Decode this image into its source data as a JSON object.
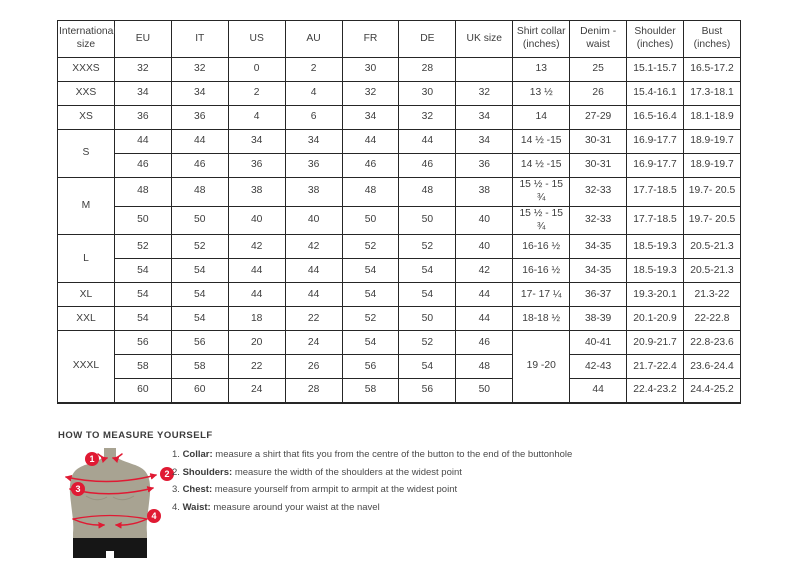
{
  "colors": {
    "accent_red": "#e01a33",
    "torso": "#a8a392",
    "shorts": "#161616",
    "border": "#262626",
    "text": "#3d3d3d"
  },
  "table": {
    "headers": [
      "International size",
      "EU",
      "IT",
      "US",
      "AU",
      "FR",
      "DE",
      "UK size",
      "Shirt collar (inches)",
      "Denim - waist",
      "Shoulder (inches)",
      "Bust (inches)"
    ],
    "rows": [
      [
        {
          "t": "XXXS",
          "n": "size-label-cell"
        },
        "32",
        "32",
        "0",
        "2",
        "30",
        "28",
        "",
        "13",
        "25",
        "15.1-15.7",
        "16.5-17.2"
      ],
      [
        {
          "t": "XXS",
          "n": "size-label-cell"
        },
        "34",
        "34",
        "2",
        "4",
        "32",
        "30",
        "32",
        "13 ½",
        "26",
        "15.4-16.1",
        "17.3-18.1"
      ],
      [
        {
          "t": "XS",
          "n": "size-label-cell"
        },
        "36",
        "36",
        "4",
        "6",
        "34",
        "32",
        "34",
        "14",
        "27-29",
        "16.5-16.4",
        "18.1-18.9"
      ],
      [
        {
          "t": "S",
          "rs": 2,
          "n": "size-label-cell"
        },
        "44",
        "44",
        "34",
        "34",
        "44",
        "44",
        "34",
        "14 ½ -15",
        "30-31",
        "16.9-17.7",
        "18.9-19.7"
      ],
      [
        "46",
        "46",
        "36",
        "36",
        "46",
        "46",
        "36",
        "14 ½ -15",
        "30-31",
        "16.9-17.7",
        "18.9-19.7"
      ],
      [
        {
          "t": "M",
          "rs": 2,
          "n": "size-label-cell"
        },
        "48",
        "48",
        "38",
        "38",
        "48",
        "48",
        "38",
        "15 ½ - 15 ¾",
        "32-33",
        "17.7-18.5",
        "19.7- 20.5"
      ],
      [
        "50",
        "50",
        "40",
        "40",
        "50",
        "50",
        "40",
        "15 ½ - 15 ¾",
        "32-33",
        "17.7-18.5",
        "19.7- 20.5"
      ],
      [
        {
          "t": "L",
          "rs": 2,
          "n": "size-label-cell"
        },
        "52",
        "52",
        "42",
        "42",
        "52",
        "52",
        "40",
        "16-16 ½",
        "34-35",
        "18.5-19.3",
        "20.5-21.3"
      ],
      [
        "54",
        "54",
        "44",
        "44",
        "54",
        "54",
        "42",
        "16-16 ½",
        "34-35",
        "18.5-19.3",
        "20.5-21.3"
      ],
      [
        {
          "t": "XL",
          "n": "size-label-cell"
        },
        "54",
        "54",
        "44",
        "44",
        "54",
        "54",
        "44",
        "17- 17 ¼",
        "36-37",
        "19.3-20.1",
        "21.3-22"
      ],
      [
        {
          "t": "XXL",
          "n": "size-label-cell"
        },
        "54",
        "54",
        "18",
        "22",
        "52",
        "50",
        "44",
        "18-18 ½",
        "38-39",
        "20.1-20.9",
        "22-22.8"
      ],
      [
        {
          "t": "XXXL",
          "rs": 3,
          "n": "size-label-cell"
        },
        "56",
        "56",
        "20",
        "24",
        "54",
        "52",
        "46",
        {
          "t": "19 -20",
          "rs": 3
        },
        "40-41",
        "20.9-21.7",
        "22.8-23.6"
      ],
      [
        "58",
        "58",
        "22",
        "26",
        "56",
        "54",
        "48",
        "42-43",
        "21.7-22.4",
        "23.6-24.4"
      ],
      [
        "60",
        "60",
        "24",
        "28",
        "58",
        "56",
        "50",
        "44",
        "22.4-23.2",
        "24.4-25.2"
      ]
    ]
  },
  "measure": {
    "heading": "HOW TO MEASURE YOURSELF",
    "figure_badges": [
      "1",
      "2",
      "3",
      "4"
    ],
    "steps": [
      {
        "num": "1.",
        "label": "Collar:",
        "text": "measure a shirt that fits you from the centre of the button to the end of the buttonhole"
      },
      {
        "num": "2.",
        "label": "Shoulders:",
        "text": "measure the width of the shoulders at the widest point"
      },
      {
        "num": "3.",
        "label": "Chest:",
        "text": "measure yourself from armpit to armpit at the widest point"
      },
      {
        "num": "4.",
        "label": "Waist:",
        "text": "measure around your waist at the navel"
      }
    ]
  }
}
